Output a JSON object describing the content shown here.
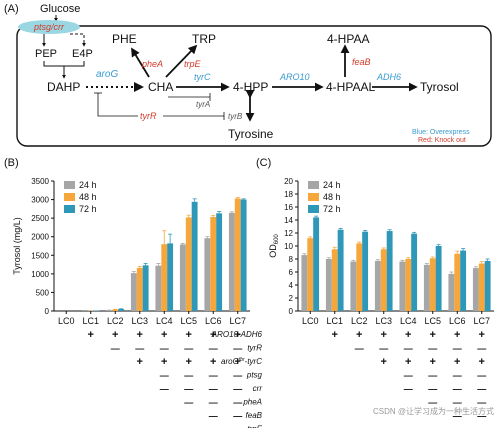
{
  "panel_labels": {
    "a": "(A)",
    "b": "(B)",
    "c": "(C)"
  },
  "pathway": {
    "glucose": "Glucose",
    "ptsg_crr": "ptsg/crr",
    "pep": "PEP",
    "e4p": "E4P",
    "dahp": "DAHP",
    "arog": "aroG",
    "cha": "CHA",
    "phe": "PHE",
    "trp": "TRP",
    "phea": "pheA",
    "trpe": "trpE",
    "tyrc": "tyrC",
    "tyra": "tyrA",
    "tyrr": "tyrR",
    "tyrb": "tyrB",
    "hpp": "4-HPP",
    "aro10": "ARO10",
    "hpaa": "4-HPAA",
    "feab": "feaB",
    "hpaal": "4-HPAAL",
    "adh6": "ADH6",
    "tyrosol": "Tyrosol",
    "tyrosine": "Tyrosine",
    "legend_blue": "Blue: Overexpress",
    "legend_red": "Red: Knock out"
  },
  "colors": {
    "h24": "#a6a6a6",
    "h48": "#f5a73b",
    "h72": "#2f97b8",
    "overexpress": "#3a9bd0",
    "knockout": "#d23a2a",
    "ptsg_bubble": "#9ad7e3"
  },
  "strain_table": {
    "rows": [
      "ARO10-ADH6",
      "tyrR",
      "aroGfbr-tyrC",
      "ptsg",
      "crr",
      "pheA",
      "feaB",
      "trpE"
    ],
    "row_main": [
      "ARO10-ADH6",
      "tyrR",
      "aroG",
      "ptsg",
      "crr",
      "pheA",
      "feaB",
      "trpE"
    ],
    "row_sup": [
      "",
      "",
      "fbr",
      "",
      "",
      "",
      "",
      ""
    ],
    "row_suffix": [
      "",
      "",
      "-tyrC",
      "",
      "",
      "",
      "",
      ""
    ],
    "marks": [
      [
        "",
        "+",
        "+",
        "+",
        "+",
        "+",
        "+",
        "+"
      ],
      [
        "",
        "",
        "—",
        "—",
        "—",
        "—",
        "—",
        "—"
      ],
      [
        "",
        "",
        "",
        "+",
        "+",
        "+",
        "+",
        "+"
      ],
      [
        "",
        "",
        "",
        "",
        "—",
        "—",
        "—",
        "—"
      ],
      [
        "",
        "",
        "",
        "",
        "—",
        "—",
        "—",
        "—"
      ],
      [
        "",
        "",
        "",
        "",
        "",
        "—",
        "—",
        "—"
      ],
      [
        "",
        "",
        "",
        "",
        "",
        "",
        "—",
        "—"
      ],
      [
        "",
        "",
        "",
        "",
        "",
        "",
        "",
        "—"
      ]
    ]
  },
  "watermark": "CSDN @让学习成为一种生活方式",
  "chart_data": [
    {
      "type": "bar",
      "panel": "B",
      "ylabel": "Tyrosol (mg/L)",
      "ylim": [
        0,
        3500
      ],
      "yticks": [
        0,
        500,
        1000,
        1500,
        2000,
        2500,
        3000,
        3500
      ],
      "categories": [
        "LC0",
        "LC1",
        "LC2",
        "LC3",
        "LC4",
        "LC5",
        "LC6",
        "LC7"
      ],
      "legend": "top-left",
      "series": [
        {
          "name": "24 h",
          "values": [
            0,
            5,
            20,
            1020,
            1220,
            1790,
            1960,
            2640
          ],
          "errors": [
            0,
            0,
            5,
            40,
            60,
            30,
            40,
            30
          ]
        },
        {
          "name": "48 h",
          "values": [
            0,
            10,
            40,
            1160,
            1800,
            2520,
            2530,
            3030
          ],
          "errors": [
            0,
            0,
            5,
            40,
            360,
            60,
            40,
            30
          ]
        },
        {
          "name": "72 h",
          "values": [
            0,
            15,
            55,
            1230,
            1820,
            2940,
            2630,
            3000
          ],
          "errors": [
            0,
            0,
            5,
            50,
            250,
            80,
            50,
            20
          ]
        }
      ]
    },
    {
      "type": "bar",
      "panel": "C",
      "ylabel": "OD600",
      "ylim": [
        0,
        20
      ],
      "yticks": [
        0,
        2,
        4,
        6,
        8,
        10,
        12,
        14,
        16,
        18,
        20
      ],
      "categories": [
        "LC0",
        "LC1",
        "LC2",
        "LC3",
        "LC4",
        "LC5",
        "LC6",
        "LC7"
      ],
      "legend": "top-left",
      "series": [
        {
          "name": "24 h",
          "values": [
            8.6,
            8.0,
            7.6,
            7.7,
            7.6,
            7.1,
            5.7,
            6.6
          ],
          "errors": [
            0.2,
            0.2,
            0.2,
            0.2,
            0.2,
            0.2,
            0.3,
            0.2
          ]
        },
        {
          "name": "48 h",
          "values": [
            11.2,
            9.5,
            10.4,
            9.5,
            8.0,
            8.1,
            8.8,
            7.3
          ],
          "errors": [
            0.2,
            0.3,
            0.2,
            0.2,
            0.2,
            0.2,
            0.4,
            0.3
          ]
        },
        {
          "name": "72 h",
          "values": [
            14.4,
            12.5,
            12.2,
            12.3,
            11.9,
            10.0,
            9.3,
            7.7
          ],
          "errors": [
            0.2,
            0.2,
            0.2,
            0.2,
            0.2,
            0.2,
            0.3,
            0.3
          ]
        }
      ]
    }
  ]
}
